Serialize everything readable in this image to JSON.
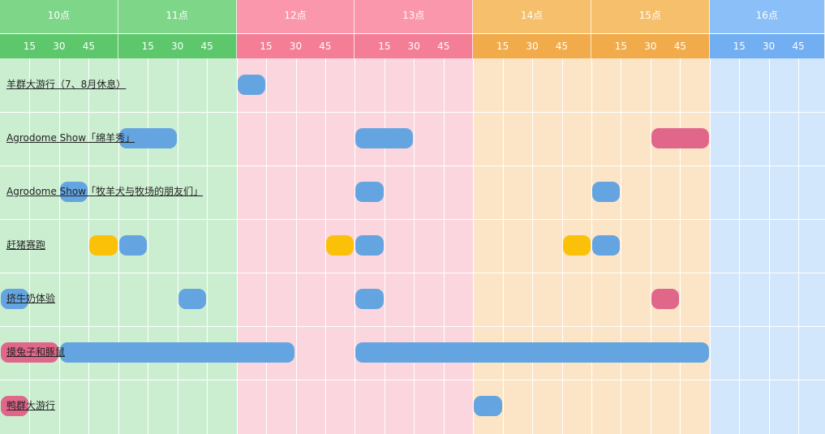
{
  "colors": {
    "green": {
      "header": "#7ed689",
      "sub": "#5cc76b",
      "body": "#cbeed1"
    },
    "pink": {
      "header": "#fb97ac",
      "sub": "#f57e97",
      "body": "#fcd6df"
    },
    "orange": {
      "header": "#f6bf6c",
      "sub": "#f2ab4a",
      "body": "#fce5c6"
    },
    "blue": {
      "header": "#8bbff7",
      "sub": "#71aef2",
      "body": "#d2e6fc"
    },
    "bar_blue": "#64a5e1",
    "bar_pink": "#e0668a",
    "bar_yellow": "#fbc108"
  },
  "hours": [
    {
      "label": "10点",
      "theme": "green"
    },
    {
      "label": "11点",
      "theme": "green"
    },
    {
      "label": "12点",
      "theme": "pink"
    },
    {
      "label": "13点",
      "theme": "pink"
    },
    {
      "label": "14点",
      "theme": "orange"
    },
    {
      "label": "15点",
      "theme": "orange"
    },
    {
      "label": "16点",
      "theme": "blue"
    }
  ],
  "ticks": [
    "15",
    "30",
    "45"
  ],
  "rows": [
    {
      "name": "羊群大游行（7、8月休息）",
      "slots": [
        {
          "start": "12:00",
          "end": "12:15",
          "color": "bar_blue"
        }
      ]
    },
    {
      "name": "Agrodome Show「绵羊秀」",
      "slots": [
        {
          "start": "11:00",
          "end": "11:30",
          "color": "bar_blue"
        },
        {
          "start": "13:00",
          "end": "13:30",
          "color": "bar_blue"
        },
        {
          "start": "15:30",
          "end": "16:00",
          "color": "bar_pink"
        }
      ]
    },
    {
      "name": "Agrodome Show「牧羊犬与牧场的朋友们」",
      "slots": [
        {
          "start": "10:30",
          "end": "10:45",
          "color": "bar_blue"
        },
        {
          "start": "13:00",
          "end": "13:15",
          "color": "bar_blue"
        },
        {
          "start": "15:00",
          "end": "15:15",
          "color": "bar_blue"
        }
      ]
    },
    {
      "name": "赶猪赛跑",
      "slots": [
        {
          "start": "10:45",
          "end": "11:00",
          "color": "bar_yellow"
        },
        {
          "start": "11:00",
          "end": "11:15",
          "color": "bar_blue"
        },
        {
          "start": "12:45",
          "end": "13:00",
          "color": "bar_yellow"
        },
        {
          "start": "13:00",
          "end": "13:15",
          "color": "bar_blue"
        },
        {
          "start": "14:45",
          "end": "15:00",
          "color": "bar_yellow"
        },
        {
          "start": "15:00",
          "end": "15:15",
          "color": "bar_blue"
        }
      ]
    },
    {
      "name": "挤牛奶体验",
      "slots": [
        {
          "start": "10:00",
          "end": "10:15",
          "color": "bar_blue"
        },
        {
          "start": "11:30",
          "end": "11:45",
          "color": "bar_blue"
        },
        {
          "start": "13:00",
          "end": "13:15",
          "color": "bar_blue"
        },
        {
          "start": "15:30",
          "end": "15:45",
          "color": "bar_pink"
        }
      ]
    },
    {
      "name": "摸兔子和豚鼠",
      "slots": [
        {
          "start": "10:00",
          "end": "10:30",
          "color": "bar_pink"
        },
        {
          "start": "10:30",
          "end": "12:30",
          "color": "bar_blue"
        },
        {
          "start": "13:00",
          "end": "16:00",
          "color": "bar_blue"
        }
      ]
    },
    {
      "name": "鸭群大游行",
      "slots": [
        {
          "start": "10:00",
          "end": "10:15",
          "color": "bar_pink"
        },
        {
          "start": "14:00",
          "end": "14:15",
          "color": "bar_blue"
        }
      ]
    }
  ]
}
